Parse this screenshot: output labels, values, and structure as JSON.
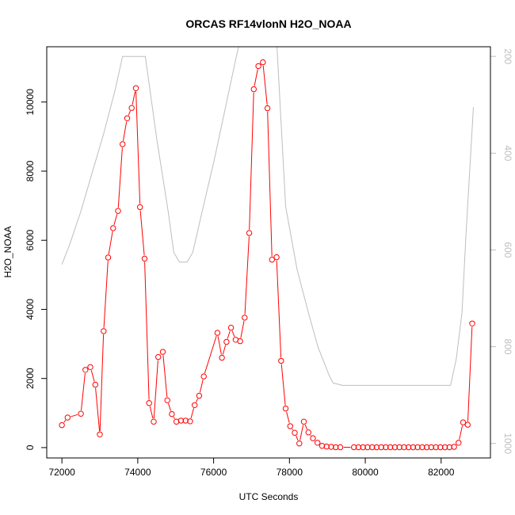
{
  "chart_data": {
    "type": "line",
    "title": "ORCAS RF14vlonN H2O_NOAA",
    "xlabel": "UTC Seconds",
    "ylabel": "H2O_NOAA",
    "xlim": [
      71600,
      83300
    ],
    "ylim": [
      -300,
      11600
    ],
    "y2lim": [
      1030,
      180
    ],
    "x_ticks": [
      72000,
      74000,
      76000,
      78000,
      80000,
      82000
    ],
    "y_ticks": [
      0,
      2000,
      4000,
      6000,
      8000,
      10000
    ],
    "y2_ticks": [
      200,
      400,
      600,
      800,
      1000
    ],
    "series": [
      {
        "role": "primary",
        "color": "#ff0000",
        "marker": "open-circle",
        "x": [
          72000,
          72150,
          72500,
          72620,
          72750,
          72880,
          73000,
          73100,
          73220,
          73350,
          73480,
          73600,
          73720,
          73840,
          73950,
          74060,
          74180,
          74300,
          74420,
          74540,
          74660,
          74780,
          74900,
          75020,
          75140,
          75260,
          75380,
          75500,
          75620,
          75740,
          76100,
          76220,
          76340,
          76460,
          76580,
          76700,
          76820,
          76940,
          77060,
          77180,
          77300,
          77420,
          77540,
          77660,
          77780,
          77900,
          78020,
          78140,
          78260,
          78380,
          78500,
          78620,
          78740,
          78860,
          78980,
          79100,
          79220,
          79340,
          79700,
          79820,
          79940,
          80060,
          80180,
          80300,
          80420,
          80540,
          80660,
          80780,
          80900,
          81020,
          81140,
          81260,
          81380,
          81500,
          81620,
          81740,
          81860,
          81980,
          82100,
          82220,
          82340,
          82460,
          82580,
          82700,
          82820
        ],
        "y": [
          650,
          870,
          980,
          2250,
          2330,
          1820,
          380,
          3370,
          5500,
          6350,
          6850,
          8780,
          9530,
          9830,
          10400,
          6960,
          5470,
          1290,
          750,
          2620,
          2770,
          1370,
          970,
          750,
          780,
          780,
          760,
          1230,
          1500,
          2060,
          3320,
          2600,
          3060,
          3470,
          3120,
          3080,
          3760,
          6210,
          10370,
          11040,
          11150,
          9820,
          5440,
          5510,
          2510,
          1130,
          620,
          430,
          120,
          750,
          440,
          270,
          140,
          50,
          30,
          20,
          10,
          10,
          10,
          10,
          10,
          10,
          10,
          10,
          10,
          10,
          10,
          10,
          10,
          10,
          10,
          10,
          10,
          10,
          10,
          10,
          10,
          10,
          10,
          10,
          20,
          140,
          730,
          660,
          3590
        ]
      },
      {
        "role": "secondary",
        "color": "#bebebe",
        "axis": "right",
        "x": [
          72000,
          72200,
          72500,
          72800,
          73100,
          73400,
          73600,
          74200,
          74500,
          74800,
          74950,
          75100,
          75300,
          75450,
          75700,
          76000,
          76300,
          76600,
          76750,
          77650,
          77900,
          78200,
          78500,
          78750,
          78900,
          79050,
          79150,
          79400,
          80000,
          81000,
          82000,
          82250,
          82400,
          82550,
          82650,
          82850
        ],
        "y": [
          630,
          590,
          520,
          440,
          360,
          270,
          200,
          200,
          370,
          520,
          605,
          625,
          625,
          605,
          520,
          420,
          310,
          200,
          150,
          150,
          510,
          640,
          730,
          800,
          830,
          860,
          875,
          880,
          880,
          880,
          880,
          880,
          825,
          730,
          575,
          305
        ]
      }
    ]
  }
}
